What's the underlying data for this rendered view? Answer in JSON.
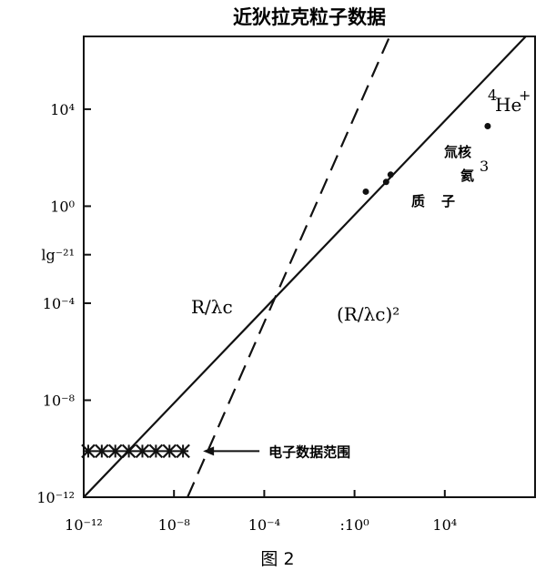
{
  "chart_data": {
    "type": "line",
    "title": "近狄拉克粒子数据",
    "figure_caption": "图 2",
    "x_scale": "log",
    "y_scale": "log",
    "xlim": [
      -12,
      8
    ],
    "ylim": [
      -12,
      7
    ],
    "x_ticks": [
      {
        "value": -12,
        "label": "10⁻¹²"
      },
      {
        "value": -8,
        "label": "10⁻⁸"
      },
      {
        "value": -4,
        "label": "10⁻⁴"
      },
      {
        "value": 0,
        "label": ":10⁰"
      },
      {
        "value": 4,
        "label": "10⁴"
      }
    ],
    "y_ticks": [
      {
        "value": 4,
        "label": "10⁴"
      },
      {
        "value": 0,
        "label": "10⁰"
      },
      {
        "value": -2,
        "label": "lg⁻²¹"
      },
      {
        "value": -4,
        "label": "10⁻⁴"
      },
      {
        "value": -8,
        "label": "10⁻⁸"
      },
      {
        "value": -12,
        "label": "10⁻¹²"
      }
    ],
    "series": [
      {
        "name": "R/λc",
        "style": "solid",
        "x": [
          -12,
          8
        ],
        "y": [
          -12,
          7.4
        ]
      },
      {
        "name": "(R/λc)²",
        "style": "dashed",
        "x": [
          -7.4,
          3.3
        ],
        "y": [
          -12,
          10.7
        ]
      }
    ],
    "electron_data": {
      "label": "电子数据范围",
      "x": [
        -11.8,
        -11.2,
        -10.6,
        -10.0,
        -9.4,
        -8.8,
        -8.2,
        -7.6
      ],
      "y": -10.1
    },
    "particles": [
      {
        "label": "质子",
        "x": 0.5,
        "y": 0.6
      },
      {
        "label": "氚核",
        "x": 1.4,
        "y": 1.0
      },
      {
        "label": "氦",
        "superscript": "3",
        "x": 1.6,
        "y": 1.3
      },
      {
        "label": "He",
        "prefix": "4",
        "superscript": "+",
        "x": 5.9,
        "y": 3.3
      }
    ]
  },
  "colors": {
    "line": "#111111",
    "background": "#ffffff"
  }
}
